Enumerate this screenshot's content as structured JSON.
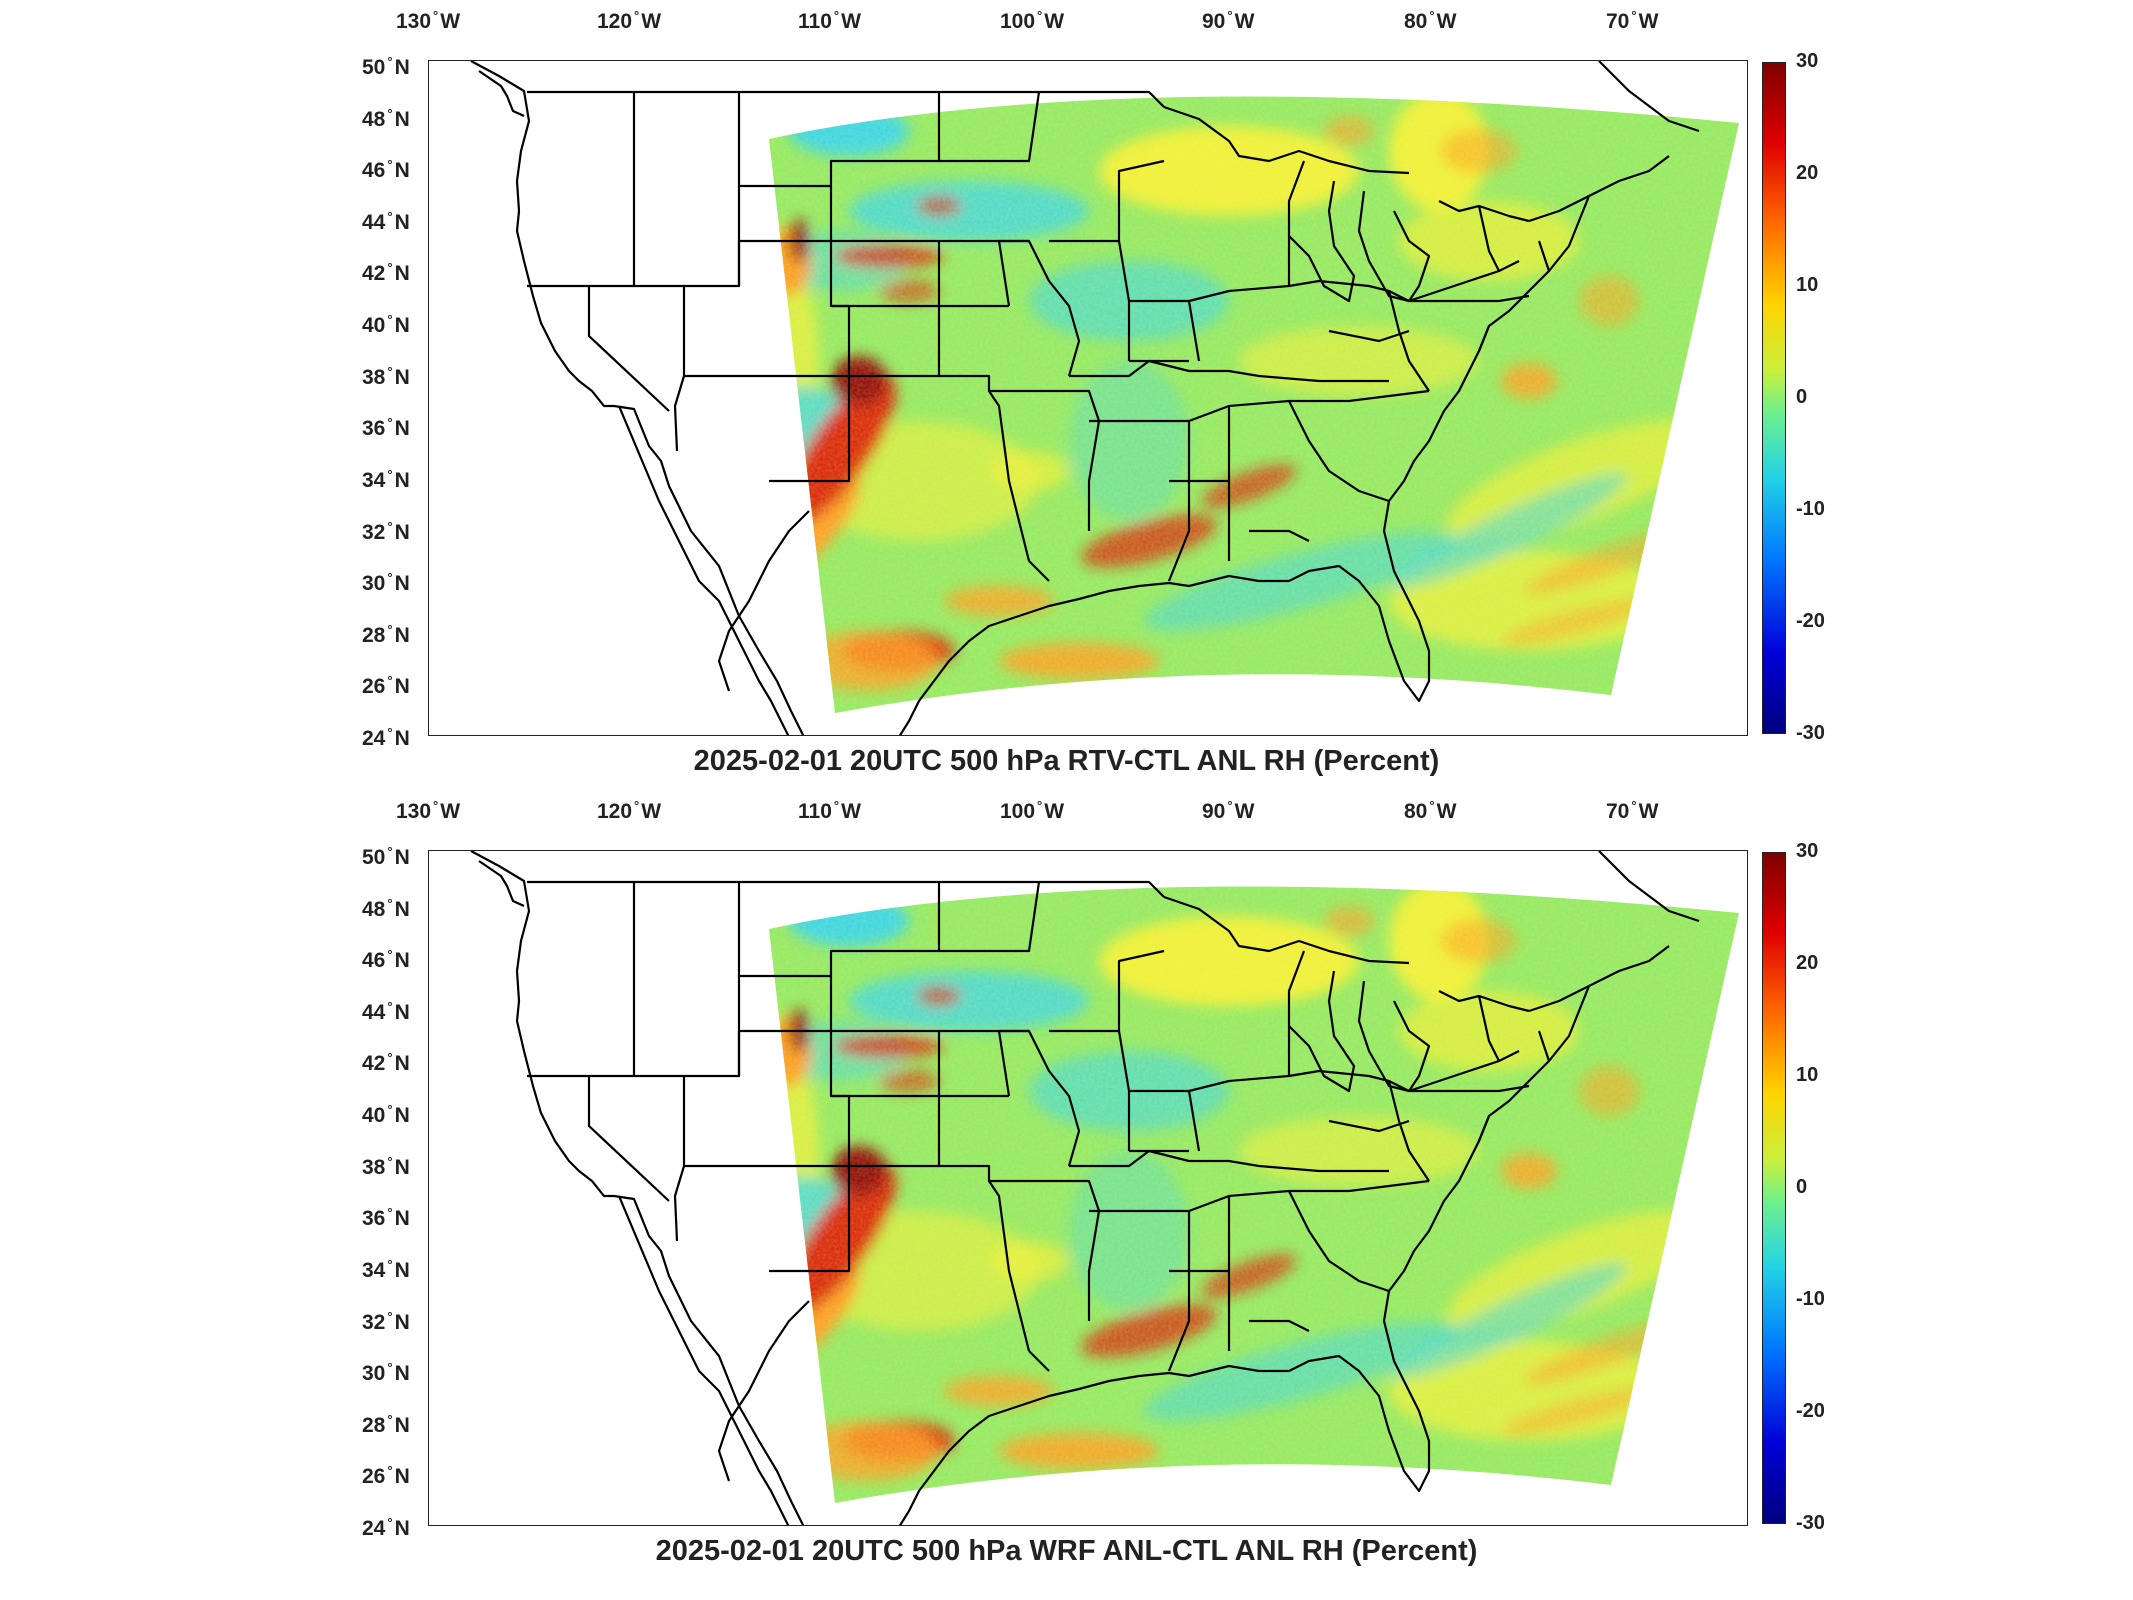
{
  "panels": [
    {
      "title": "2025-02-01 20UTC 500 hPa RTV-CTL ANL RH (Percent)",
      "variant": "rtv"
    },
    {
      "title": "2025-02-01 20UTC 500 hPa WRF ANL-CTL ANL RH (Percent)",
      "variant": "wrf"
    }
  ],
  "longitude_labels": [
    "130",
    "120",
    "110",
    "100",
    "90",
    "80",
    "70"
  ],
  "longitude_hemisphere": "W",
  "latitude_labels": [
    "50",
    "48",
    "46",
    "44",
    "42",
    "40",
    "38",
    "36",
    "34",
    "32",
    "30",
    "28",
    "26",
    "24"
  ],
  "latitude_hemisphere": "N",
  "colorbar": {
    "ticks": [
      "30",
      "20",
      "10",
      "0",
      "-10",
      "-20",
      "-30"
    ],
    "colors": [
      "#7f0000",
      "#e00000",
      "#ff6a00",
      "#ffd400",
      "#6ff08c",
      "#22d2e6",
      "#0078ff",
      "#0000d8",
      "#00007f"
    ]
  },
  "field_colors": {
    "base": "#8fe860",
    "yellow": "#f0f030",
    "orange": "#ff9a1a",
    "red": "#d81e00",
    "darkred": "#8a0000",
    "cyan": "#33d4e8",
    "blue": "#2a7cff",
    "darkblue": "#1038c8"
  }
}
